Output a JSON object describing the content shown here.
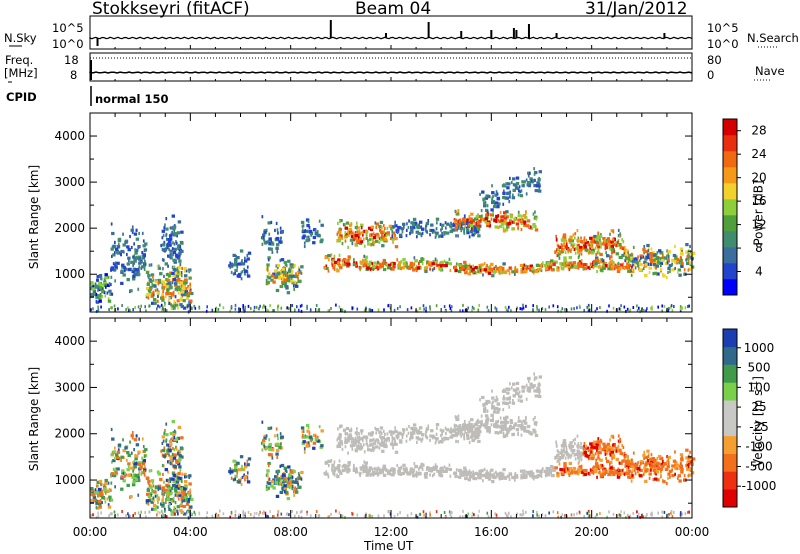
{
  "header": {
    "station": "Stokkseyri (fitACF)",
    "beam": "Beam 04",
    "date": "31/Jan/2012"
  },
  "strip_labels": {
    "nsky": "N.Sky",
    "nsearch": "N.Search",
    "freq_top": "Freq.",
    "freq_unit": "[MHz]",
    "nave": "Nave",
    "cpid": "CPID",
    "cpid_value": "normal 150",
    "noise_ticks": [
      "10^5",
      "10^0"
    ],
    "freq_ticks": [
      "18",
      "8"
    ],
    "nave_ticks": [
      "80",
      "0"
    ]
  },
  "colors": {
    "power_scale": [
      "#0000ff",
      "#2244cc",
      "#3a6e9e",
      "#3f8c6f",
      "#4fa03d",
      "#8ccf3a",
      "#f2d22a",
      "#f59a18",
      "#ef6a10",
      "#e83010",
      "#d40000"
    ],
    "velocity_scale": [
      "#e00000",
      "#ee3010",
      "#f2701c",
      "#f59f30",
      "#c8c8c4",
      "#c8c8c4",
      "#7ad04a",
      "#3f9a4a",
      "#2f6a8a",
      "#1b3fb0"
    ],
    "ground_scatter": "#bdbcb8"
  },
  "chart_data": [
    {
      "type": "line",
      "title": "N.Sky / N.Search",
      "y_scale": "log",
      "yticks": [
        "10^0",
        "10^5"
      ],
      "note": "Noise level traces, mostly flat near baseline with occasional spikes"
    },
    {
      "type": "line",
      "title": "Freq. [MHz] / Nave",
      "yticks_left": [
        8,
        18
      ],
      "yticks_right": [
        0,
        80
      ],
      "series": [
        {
          "name": "Freq. [MHz]",
          "approx_value": 10
        },
        {
          "name": "Nave",
          "approx_value": 80
        }
      ]
    },
    {
      "type": "heatmap",
      "title": "Power [dB]",
      "xlabel": "",
      "ylabel": "Slant Range [km]",
      "xticks": [
        "00:00",
        "04:00",
        "08:00",
        "12:00",
        "16:00",
        "20:00",
        "00:00"
      ],
      "yticks": [
        1000,
        2000,
        3000,
        4000
      ],
      "ylim": [
        180,
        4500
      ],
      "xlim_hours": [
        0,
        24
      ],
      "colorbar": {
        "label": "Power [dB]",
        "ticks": [
          4,
          8,
          12,
          16,
          20,
          24,
          28
        ],
        "range": [
          0,
          30
        ]
      },
      "features": [
        {
          "desc": "main echo band",
          "t_start": 11.5,
          "t_end": 21.8,
          "range_km": 1100
        },
        {
          "desc": "upper band",
          "t_start": 13.0,
          "t_end": 17.8,
          "range_km": 2100
        },
        {
          "desc": "patch near midnight",
          "t_start": 0.0,
          "t_end": 4.0,
          "range_km": 500
        }
      ]
    },
    {
      "type": "heatmap",
      "title": "Velocity [m s^-1]",
      "xlabel": "Time UT",
      "ylabel": "Slant Range [km]",
      "xticks": [
        "00:00",
        "04:00",
        "08:00",
        "12:00",
        "16:00",
        "20:00",
        "00:00"
      ],
      "yticks": [
        1000,
        2000,
        3000,
        4000
      ],
      "ylim": [
        180,
        4500
      ],
      "xlim_hours": [
        0,
        24
      ],
      "colorbar": {
        "label": "Velocity [m s^-1]",
        "ticks": [
          1000,
          500,
          100,
          25,
          -25,
          -100,
          -500,
          -1000
        ]
      },
      "features": [
        {
          "desc": "ground scatter (grey)",
          "t_start": 9.0,
          "t_end": 19.5
        },
        {
          "desc": "negative velocities (orange)",
          "t_start": 19.5,
          "t_end": 24.0
        }
      ]
    }
  ],
  "labels": {
    "ylabel": "Slant Range [km]",
    "power_label": "Power [dB]",
    "velocity_label": "Velocity [m s",
    "velocity_sup": "-1",
    "velocity_close": "]",
    "xlabel": "Time UT"
  }
}
